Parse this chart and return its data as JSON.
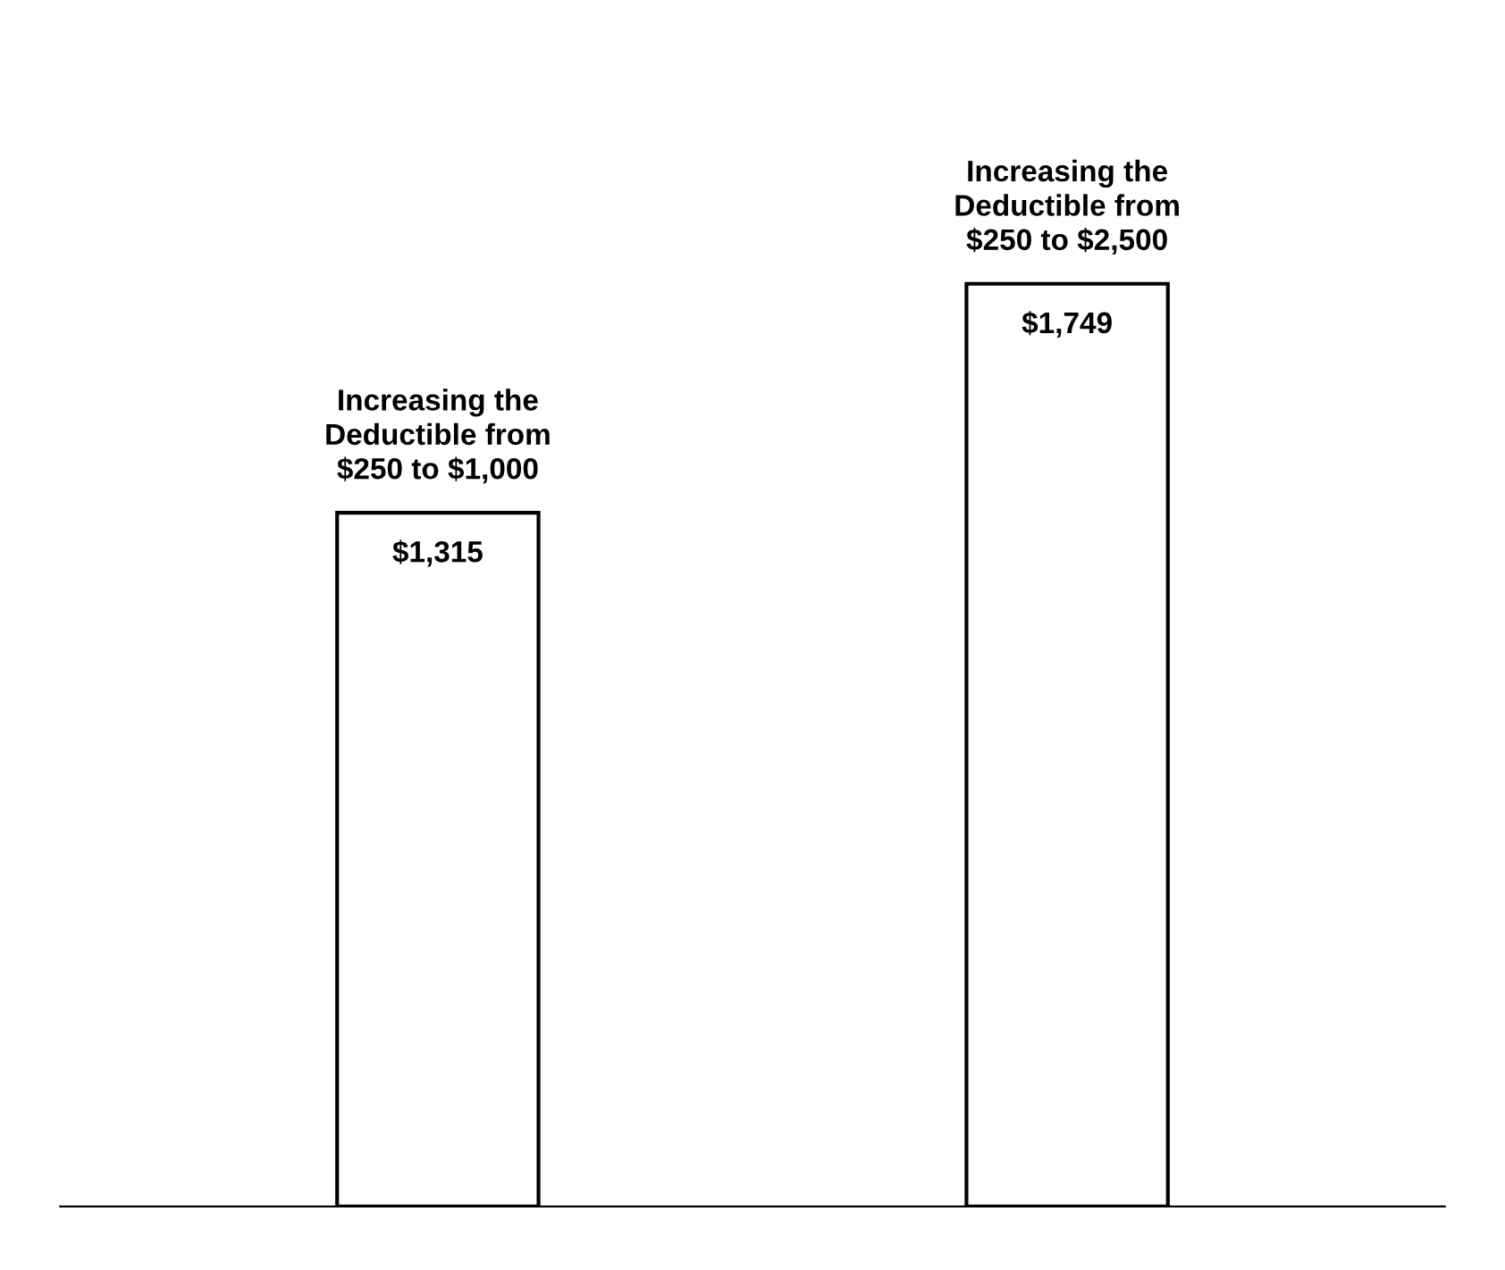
{
  "chart_data": {
    "type": "bar",
    "categories": [
      "Increasing the\nDeductible from\n$250 to $1,000",
      "Increasing the\nDeductible from\n$250 to $2,500"
    ],
    "values": [
      1315,
      1749
    ],
    "value_labels": [
      "$1,315",
      "$1,749"
    ],
    "color": "#ffffff"
  }
}
